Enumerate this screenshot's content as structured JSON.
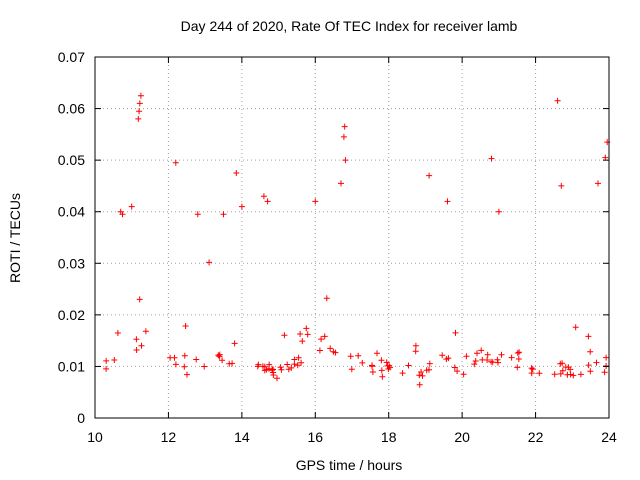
{
  "chart_data": {
    "type": "scatter",
    "title": "Day 244 of 2020, Rate Of TEC Index for receiver lamb",
    "xlabel": "GPS time / hours",
    "ylabel": "ROTI / TECUs",
    "xlim": [
      10,
      24
    ],
    "ylim": [
      0,
      0.07
    ],
    "x_ticks": [
      10,
      12,
      14,
      16,
      18,
      20,
      22,
      24
    ],
    "x_tick_labels": [
      "10",
      "12",
      "14",
      "16",
      "18",
      "20",
      "22",
      "24"
    ],
    "y_ticks": [
      0,
      0.01,
      0.02,
      0.03,
      0.04,
      0.05,
      0.06,
      0.07
    ],
    "y_tick_labels": [
      "0",
      "0.01",
      "0.02",
      "0.03",
      "0.04",
      "0.05",
      "0.06",
      "0.07"
    ],
    "grid": true,
    "marker": "plus",
    "color": "#ff0000",
    "data_range_x": [
      10.3,
      24.0
    ],
    "series": [
      {
        "name": "ROTI",
        "baseline_envelope": [
          [
            10.3,
            0.01
          ],
          [
            10.6,
            0.013
          ],
          [
            11.0,
            0.014
          ],
          [
            11.5,
            0.013
          ],
          [
            12.0,
            0.012
          ],
          [
            12.5,
            0.01
          ],
          [
            13.0,
            0.01
          ],
          [
            13.5,
            0.011
          ],
          [
            14.0,
            0.01
          ],
          [
            14.5,
            0.009
          ],
          [
            15.0,
            0.009
          ],
          [
            15.5,
            0.01
          ],
          [
            16.0,
            0.013
          ],
          [
            16.5,
            0.014
          ],
          [
            17.0,
            0.01
          ],
          [
            17.5,
            0.009
          ],
          [
            18.0,
            0.009
          ],
          [
            18.5,
            0.009
          ],
          [
            19.0,
            0.009
          ],
          [
            19.5,
            0.01
          ],
          [
            20.0,
            0.01
          ],
          [
            20.5,
            0.011
          ],
          [
            21.0,
            0.011
          ],
          [
            21.5,
            0.01
          ],
          [
            22.0,
            0.009
          ],
          [
            22.5,
            0.009
          ],
          [
            23.0,
            0.009
          ],
          [
            23.5,
            0.009
          ],
          [
            24.0,
            0.009
          ]
        ],
        "notable_points": [
          [
            11.25,
            0.0625
          ],
          [
            11.22,
            0.061
          ],
          [
            11.2,
            0.0595
          ],
          [
            11.18,
            0.058
          ],
          [
            22.6,
            0.0615
          ],
          [
            20.8,
            0.0503
          ],
          [
            16.8,
            0.0565
          ],
          [
            16.78,
            0.0545
          ],
          [
            16.82,
            0.05
          ],
          [
            16.7,
            0.0455
          ],
          [
            12.2,
            0.0495
          ],
          [
            13.85,
            0.0475
          ],
          [
            19.1,
            0.047
          ],
          [
            23.95,
            0.0535
          ],
          [
            23.9,
            0.0505
          ],
          [
            14.6,
            0.043
          ],
          [
            14.7,
            0.042
          ],
          [
            10.7,
            0.04
          ],
          [
            10.75,
            0.0395
          ],
          [
            16.0,
            0.042
          ],
          [
            19.6,
            0.042
          ],
          [
            22.7,
            0.045
          ],
          [
            23.7,
            0.0455
          ],
          [
            13.5,
            0.0395
          ],
          [
            12.8,
            0.0395
          ],
          [
            14.0,
            0.041
          ],
          [
            21.0,
            0.04
          ],
          [
            11.0,
            0.041
          ]
        ]
      }
    ]
  }
}
